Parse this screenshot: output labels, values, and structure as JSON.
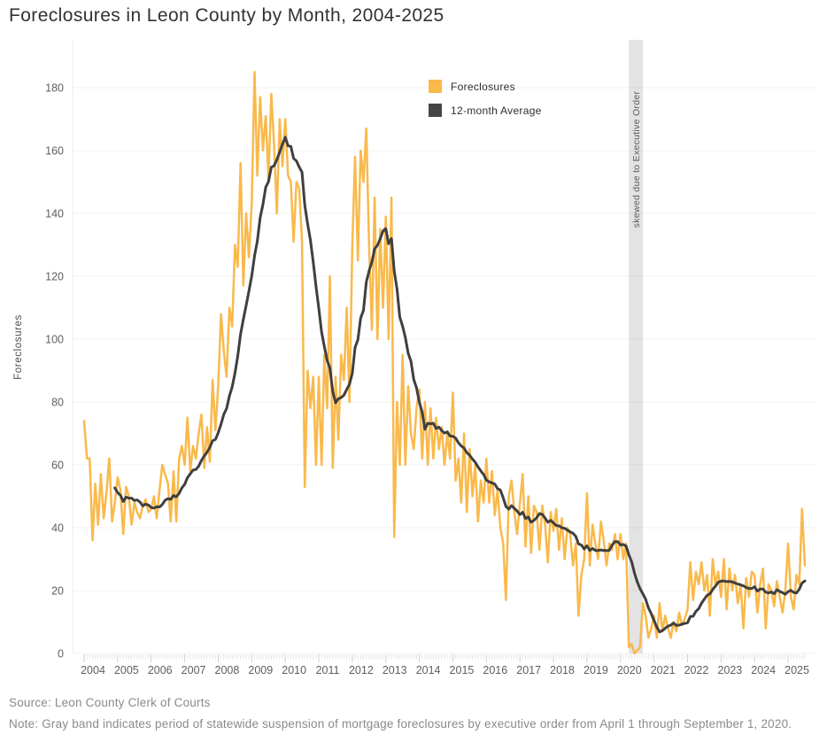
{
  "title": "Foreclosures in Leon County by Month, 2004-2025",
  "y_axis": {
    "label": "Foreclosures",
    "ticks": [
      0,
      20,
      40,
      60,
      80,
      100,
      120,
      140,
      160,
      180
    ]
  },
  "x_axis": {
    "years": [
      "2004",
      "2005",
      "2006",
      "2007",
      "2008",
      "2009",
      "2010",
      "2011",
      "2012",
      "2013",
      "2014",
      "2015",
      "2016",
      "2017",
      "2018",
      "2019",
      "2020",
      "2021",
      "2022",
      "2023",
      "2024",
      "2025"
    ]
  },
  "legend": [
    {
      "label": "Foreclosures",
      "color": "#F9B94B"
    },
    {
      "label": "12-month Average",
      "color": "#454545"
    }
  ],
  "band": {
    "label": "skewed due to Executive Order",
    "from": "2020-04-01",
    "to": "2020-09-01",
    "fill": "rgba(0,0,0,0.11)",
    "label_color": "#5a5a5a"
  },
  "footer": {
    "source": "Source: Leon County Clerk of Courts",
    "note": "Note: Gray band indicates period of statewide suspension of mortgage foreclosures by executive order from April 1 through September 1, 2020."
  },
  "chart_data": {
    "type": "line",
    "title": "Foreclosures in Leon County by Month, 2004-2025",
    "xlabel": "",
    "ylabel": "Foreclosures",
    "x_start": "2004-01",
    "x_end": "2025-07",
    "x_interval": "month",
    "ylim": [
      0,
      190
    ],
    "grid": "horizontal, light gray",
    "legend_position": "inside top-center",
    "annotations": {
      "vertical_band": {
        "label": "skewed due to Executive Order",
        "from": "2020-04-01",
        "to": "2020-09-01"
      }
    },
    "series": [
      {
        "name": "Foreclosures",
        "color": "#F9B94B",
        "values": [
          74,
          62,
          62,
          36,
          54,
          41,
          57,
          43,
          51,
          62,
          42,
          48,
          56,
          52,
          38,
          53,
          50,
          41,
          48,
          45,
          43,
          47,
          49,
          45,
          46,
          50,
          43,
          52,
          60,
          57,
          54,
          42,
          58,
          42,
          62,
          66,
          60,
          75,
          58,
          66,
          62,
          70,
          76,
          59,
          72,
          61,
          87,
          71,
          85,
          108,
          96,
          88,
          110,
          104,
          130,
          123,
          156,
          117,
          140,
          126,
          143,
          185,
          152,
          177,
          160,
          171,
          151,
          178,
          162,
          140,
          170,
          155,
          170,
          152,
          150,
          131,
          150,
          148,
          131,
          53,
          90,
          78,
          88,
          60,
          88,
          60,
          95,
          78,
          120,
          59,
          88,
          68,
          95,
          87,
          110,
          80,
          130,
          158,
          125,
          160,
          150,
          167,
          130,
          103,
          145,
          100,
          135,
          110,
          139,
          100,
          145,
          37,
          80,
          60,
          95,
          60,
          85,
          70,
          65,
          78,
          84,
          62,
          80,
          60,
          78,
          62,
          75,
          65,
          72,
          60,
          70,
          62,
          83,
          55,
          62,
          48,
          70,
          45,
          65,
          50,
          60,
          42,
          55,
          48,
          62,
          48,
          58,
          44,
          52,
          40,
          35,
          17,
          50,
          55,
          45,
          38,
          48,
          57,
          34,
          50,
          32,
          47,
          45,
          33,
          47,
          41,
          29,
          45,
          39,
          46,
          33,
          43,
          30,
          40,
          38,
          28,
          35,
          12,
          25,
          30,
          51,
          28,
          41,
          35,
          30,
          42,
          36,
          28,
          35,
          33,
          38,
          30,
          38,
          30,
          35,
          2,
          3,
          0,
          1,
          2,
          16,
          12,
          5,
          8,
          12,
          5,
          16,
          7,
          12,
          8,
          5,
          10,
          7,
          13,
          9,
          11,
          14,
          29,
          17,
          26,
          22,
          29,
          20,
          25,
          12,
          30,
          22,
          26,
          18,
          30,
          14,
          27,
          20,
          25,
          16,
          22,
          8,
          24,
          18,
          26,
          25,
          13,
          22,
          27,
          8,
          22,
          20,
          15,
          23,
          18,
          13,
          20,
          35,
          18,
          14,
          25,
          22,
          46,
          28
        ]
      },
      {
        "name": "12-month Average",
        "color": "#3f3f3f",
        "derived": "trailing 12-month mean of the Foreclosures series, first point plotted at Dec 2004"
      }
    ]
  }
}
